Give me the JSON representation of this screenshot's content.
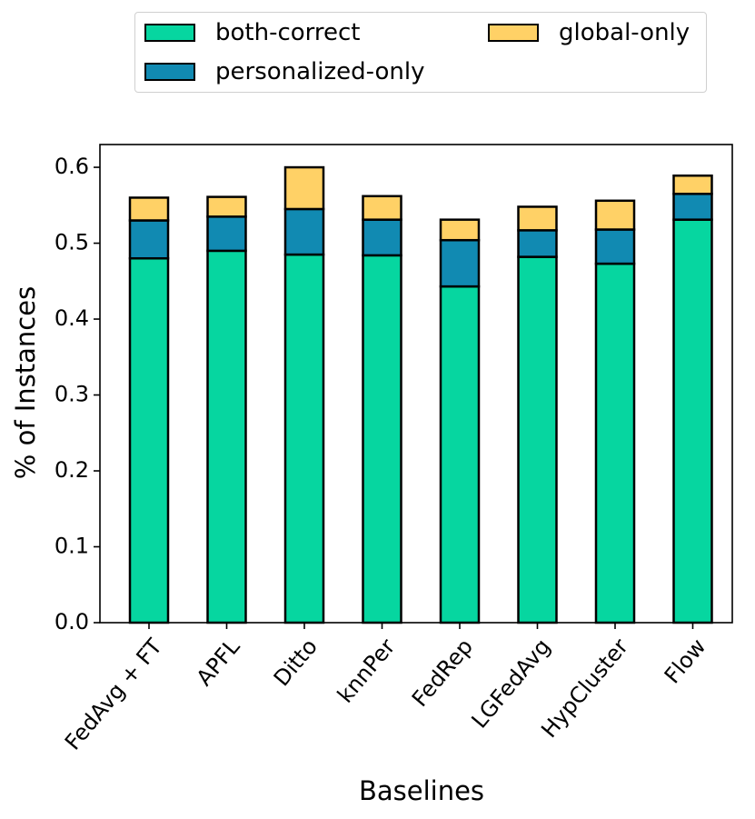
{
  "chart_data": {
    "type": "bar",
    "stacked": true,
    "title": "",
    "xlabel": "Baselines",
    "ylabel": "% of Instances",
    "ylim": [
      0.0,
      0.63
    ],
    "yticks": [
      "0.0",
      "0.1",
      "0.2",
      "0.3",
      "0.4",
      "0.5",
      "0.6"
    ],
    "categories": [
      "FedAvg + FT",
      "APFL",
      "Ditto",
      "knnPer",
      "FedRep",
      "LGFedAvg",
      "HypCluster",
      "Flow"
    ],
    "series": [
      {
        "name": "both-correct",
        "color": "#06d6a0",
        "values": [
          0.48,
          0.49,
          0.485,
          0.484,
          0.443,
          0.482,
          0.473,
          0.531
        ]
      },
      {
        "name": "personalized-only",
        "color": "#118ab2",
        "values": [
          0.05,
          0.045,
          0.06,
          0.047,
          0.061,
          0.035,
          0.045,
          0.034
        ]
      },
      {
        "name": "global-only",
        "color": "#ffd166",
        "values": [
          0.03,
          0.026,
          0.055,
          0.031,
          0.027,
          0.031,
          0.038,
          0.024
        ]
      }
    ],
    "legend_position": "top-center"
  }
}
